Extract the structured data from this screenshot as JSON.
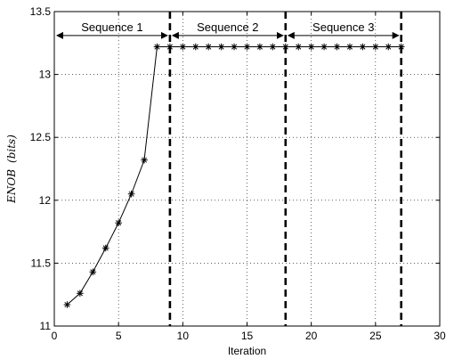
{
  "chart_data": {
    "type": "line",
    "title": "",
    "xlabel": "Iteration",
    "ylabel": "ENOB",
    "ylabel_unit": "(bits)",
    "xlim": [
      0,
      30
    ],
    "ylim": [
      11,
      13.5
    ],
    "xticks": [
      0,
      5,
      10,
      15,
      20,
      25,
      30
    ],
    "yticks": [
      11,
      11.5,
      12,
      12.5,
      13,
      13.5
    ],
    "grid": true,
    "series": [
      {
        "marker": "asterisk",
        "color": "#000000",
        "x": [
          1,
          2,
          3,
          4,
          5,
          6,
          7,
          8,
          9,
          10,
          11,
          12,
          13,
          14,
          15,
          16,
          17,
          18,
          19,
          20,
          21,
          22,
          23,
          24,
          25,
          26,
          27
        ],
        "y": [
          11.17,
          11.26,
          11.43,
          11.62,
          11.82,
          12.05,
          12.32,
          13.22,
          13.22,
          13.22,
          13.22,
          13.22,
          13.22,
          13.22,
          13.22,
          13.22,
          13.22,
          13.22,
          13.22,
          13.22,
          13.22,
          13.22,
          13.22,
          13.22,
          13.22,
          13.22,
          13.22
        ]
      }
    ],
    "boundaries": [
      9,
      18,
      27
    ],
    "sequences": [
      {
        "label": "Sequence 1",
        "x_start": 0,
        "x_end": 9
      },
      {
        "label": "Sequence 2",
        "x_start": 9,
        "x_end": 18
      },
      {
        "label": "Sequence 3",
        "x_start": 18,
        "x_end": 27
      }
    ],
    "arrow_y": 13.31
  }
}
